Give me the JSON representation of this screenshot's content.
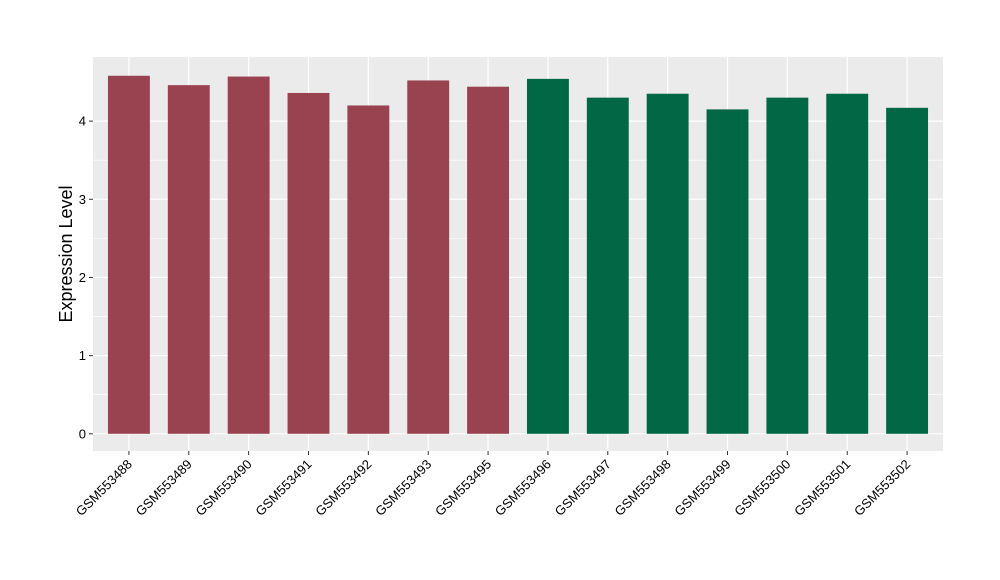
{
  "chart_data": {
    "type": "bar",
    "title": "",
    "xlabel": "",
    "ylabel": "Expression Level",
    "ylim": [
      -0.22,
      4.82
    ],
    "yticks": [
      0,
      1,
      2,
      3,
      4
    ],
    "grid": true,
    "panel_background": "#EBEBEB",
    "categories": [
      "GSM553488",
      "GSM553489",
      "GSM553490",
      "GSM553491",
      "GSM553492",
      "GSM553493",
      "GSM553495",
      "GSM553496",
      "GSM553497",
      "GSM553498",
      "GSM553499",
      "GSM553500",
      "GSM553501",
      "GSM553502"
    ],
    "values": [
      4.58,
      4.46,
      4.57,
      4.36,
      4.2,
      4.52,
      4.44,
      4.54,
      4.3,
      4.35,
      4.15,
      4.3,
      4.35,
      4.17
    ],
    "bar_colors": [
      "#9A4350",
      "#9A4350",
      "#9A4350",
      "#9A4350",
      "#9A4350",
      "#9A4350",
      "#9A4350",
      "#016745",
      "#016745",
      "#016745",
      "#016745",
      "#016745",
      "#016745",
      "#016745"
    ]
  }
}
